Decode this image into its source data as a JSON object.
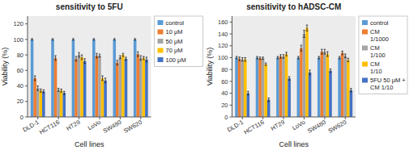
{
  "chart_data": [
    {
      "type": "bar",
      "title": "sensitivity to 5FU",
      "xlabel": "Cell lines",
      "ylabel": "Viability (%)",
      "categories": [
        "DLD-1",
        "HCT116",
        "HT29",
        "LoVo",
        "SW480",
        "SW620"
      ],
      "series": [
        {
          "name": "control",
          "color": "#5b9bd5",
          "values": [
            100,
            100,
            100,
            100,
            100,
            100
          ],
          "errors": [
            1,
            1,
            1,
            1,
            1,
            1
          ]
        },
        {
          "name": "10 μM",
          "color": "#ed7d31",
          "values": [
            50,
            76,
            75,
            79,
            70,
            81
          ],
          "errors": [
            3,
            3,
            3,
            3,
            3,
            3
          ]
        },
        {
          "name": "50 μM",
          "color": "#a5a5a5",
          "values": [
            37,
            35,
            80,
            79,
            77,
            76
          ],
          "errors": [
            3,
            2,
            3,
            2,
            2,
            3
          ]
        },
        {
          "name": "70 μM",
          "color": "#ffc000",
          "values": [
            34,
            34,
            77,
            50,
            80,
            76
          ],
          "errors": [
            2,
            2,
            3,
            3,
            2,
            2
          ]
        },
        {
          "name": "100 μM",
          "color": "#4472c4",
          "values": [
            33,
            31,
            72,
            47,
            75,
            74
          ],
          "errors": [
            2,
            2,
            3,
            3,
            2,
            3
          ]
        }
      ],
      "ylim": [
        0,
        130
      ],
      "yticks": [
        0,
        20,
        40,
        60,
        80,
        100,
        120
      ],
      "grid": false,
      "legend": "upper right"
    },
    {
      "type": "bar",
      "title": "sensitivity to hADSC-CM",
      "xlabel": "Cell lines",
      "ylabel": "Viability (%)",
      "categories": [
        "DLD-1",
        "HCT116",
        "HT29",
        "LoVo",
        "SW480",
        "SW620"
      ],
      "series": [
        {
          "name": "control",
          "color": "#5b9bd5",
          "values": [
            100,
            100,
            100,
            100,
            100,
            100
          ],
          "errors": [
            2,
            2,
            2,
            2,
            2,
            2
          ]
        },
        {
          "name": "CM\n1/1000",
          "color": "#ed7d31",
          "values": [
            98,
            99,
            102,
            116,
            110,
            108
          ],
          "errors": [
            3,
            2,
            3,
            5,
            4,
            3
          ]
        },
        {
          "name": "CM\n1/100",
          "color": "#a5a5a5",
          "values": [
            97,
            99,
            102,
            140,
            110,
            103
          ],
          "errors": [
            3,
            2,
            3,
            6,
            4,
            3
          ]
        },
        {
          "name": "CM\n1/10",
          "color": "#ffc000",
          "values": [
            97,
            89,
            106,
            150,
            106,
            96
          ],
          "errors": [
            3,
            2,
            3,
            5,
            4,
            3
          ]
        },
        {
          "name": "5FU 50 μM +\nCM 1/10",
          "color": "#4472c4",
          "values": [
            40,
            29,
            65,
            75,
            78,
            45
          ],
          "errors": [
            3,
            3,
            3,
            4,
            3,
            3
          ]
        }
      ],
      "ylim": [
        0,
        170
      ],
      "yticks": [
        0,
        20,
        40,
        60,
        80,
        100,
        120,
        140,
        160
      ],
      "grid": false,
      "legend": "upper right"
    }
  ]
}
